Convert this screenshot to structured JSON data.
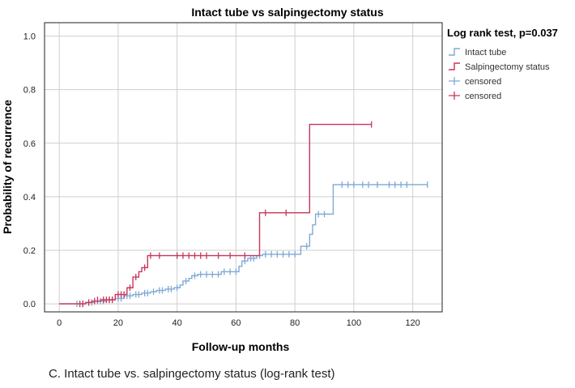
{
  "caption": "C. Intact tube vs. salpingectomy status (log-rank test)",
  "chart_data": {
    "type": "line",
    "step": true,
    "title": "Intact tube vs salpingectomy status",
    "xlabel": "Follow-up months",
    "ylabel": "Probability of recurrence",
    "xlim": [
      -5,
      130
    ],
    "ylim": [
      -0.03,
      1.05
    ],
    "xticks": [
      0,
      20,
      40,
      60,
      80,
      100,
      120
    ],
    "yticks": [
      0.0,
      0.2,
      0.4,
      0.6,
      0.8,
      1.0
    ],
    "xtick_labels": [
      "0",
      "20",
      "40",
      "60",
      "80",
      "100",
      "120"
    ],
    "ytick_labels": [
      "0.0",
      "0.2",
      "0.4",
      "0.6",
      "0.8",
      "1.0"
    ],
    "grid": true,
    "legend_title": "Log rank test, p=0.037",
    "legend": [
      {
        "label": "Intact tube",
        "kind": "step",
        "color": "#7FA9D6"
      },
      {
        "label": "Salpingectomy status",
        "kind": "step",
        "color": "#C8365A"
      },
      {
        "label": "censored",
        "kind": "censor",
        "color": "#7FA9D6"
      },
      {
        "label": "censored",
        "kind": "censor",
        "color": "#C8365A"
      }
    ],
    "series": [
      {
        "name": "Intact tube",
        "color": "#7FA9D6",
        "steps": [
          [
            0,
            0
          ],
          [
            9,
            0.005
          ],
          [
            12,
            0.01
          ],
          [
            16,
            0.015
          ],
          [
            19,
            0.02
          ],
          [
            22,
            0.03
          ],
          [
            25,
            0.035
          ],
          [
            28,
            0.04
          ],
          [
            31,
            0.045
          ],
          [
            33,
            0.05
          ],
          [
            36,
            0.055
          ],
          [
            39,
            0.06
          ],
          [
            41,
            0.07
          ],
          [
            42,
            0.085
          ],
          [
            44,
            0.095
          ],
          [
            45,
            0.105
          ],
          [
            47,
            0.11
          ],
          [
            55,
            0.12
          ],
          [
            61,
            0.14
          ],
          [
            62,
            0.16
          ],
          [
            64,
            0.17
          ],
          [
            67,
            0.18
          ],
          [
            69,
            0.185
          ],
          [
            82,
            0.215
          ],
          [
            85,
            0.26
          ],
          [
            86,
            0.295
          ],
          [
            87,
            0.335
          ],
          [
            93,
            0.445
          ],
          [
            125,
            0.445
          ]
        ],
        "censored": [
          [
            6,
            0
          ],
          [
            8,
            0
          ],
          [
            10,
            0.005
          ],
          [
            11,
            0.005
          ],
          [
            13,
            0.01
          ],
          [
            14,
            0.01
          ],
          [
            15,
            0.01
          ],
          [
            17,
            0.015
          ],
          [
            18,
            0.015
          ],
          [
            20,
            0.02
          ],
          [
            21,
            0.02
          ],
          [
            23,
            0.03
          ],
          [
            24,
            0.03
          ],
          [
            26,
            0.035
          ],
          [
            27,
            0.035
          ],
          [
            29,
            0.04
          ],
          [
            30,
            0.04
          ],
          [
            32,
            0.045
          ],
          [
            34,
            0.05
          ],
          [
            35,
            0.05
          ],
          [
            37,
            0.055
          ],
          [
            38,
            0.055
          ],
          [
            40,
            0.06
          ],
          [
            43,
            0.085
          ],
          [
            46,
            0.105
          ],
          [
            48,
            0.11
          ],
          [
            50,
            0.11
          ],
          [
            52,
            0.11
          ],
          [
            54,
            0.11
          ],
          [
            56,
            0.12
          ],
          [
            58,
            0.12
          ],
          [
            60,
            0.12
          ],
          [
            63,
            0.16
          ],
          [
            65,
            0.17
          ],
          [
            66,
            0.17
          ],
          [
            68,
            0.18
          ],
          [
            70,
            0.185
          ],
          [
            72,
            0.185
          ],
          [
            74,
            0.185
          ],
          [
            76,
            0.185
          ],
          [
            78,
            0.185
          ],
          [
            80,
            0.185
          ],
          [
            84,
            0.215
          ],
          [
            88,
            0.335
          ],
          [
            90,
            0.335
          ],
          [
            96,
            0.445
          ],
          [
            98,
            0.445
          ],
          [
            100,
            0.445
          ],
          [
            103,
            0.445
          ],
          [
            105,
            0.445
          ],
          [
            108,
            0.445
          ],
          [
            112,
            0.445
          ],
          [
            114,
            0.445
          ],
          [
            116,
            0.445
          ],
          [
            118,
            0.445
          ],
          [
            125,
            0.445
          ]
        ]
      },
      {
        "name": "Salpingectomy status",
        "color": "#C8365A",
        "steps": [
          [
            0,
            0
          ],
          [
            9,
            0.005
          ],
          [
            11,
            0.01
          ],
          [
            14,
            0.015
          ],
          [
            19,
            0.035
          ],
          [
            23,
            0.06
          ],
          [
            25,
            0.1
          ],
          [
            27,
            0.12
          ],
          [
            28,
            0.135
          ],
          [
            30,
            0.18
          ],
          [
            68,
            0.34
          ],
          [
            85,
            0.67
          ],
          [
            106,
            0.67
          ]
        ],
        "censored": [
          [
            7,
            0
          ],
          [
            8,
            0
          ],
          [
            10,
            0.005
          ],
          [
            12,
            0.01
          ],
          [
            13,
            0.015
          ],
          [
            15,
            0.015
          ],
          [
            16,
            0.015
          ],
          [
            17,
            0.015
          ],
          [
            18,
            0.015
          ],
          [
            20,
            0.035
          ],
          [
            21,
            0.035
          ],
          [
            22,
            0.035
          ],
          [
            24,
            0.06
          ],
          [
            26,
            0.1
          ],
          [
            29,
            0.135
          ],
          [
            31,
            0.18
          ],
          [
            34,
            0.18
          ],
          [
            40,
            0.18
          ],
          [
            42,
            0.18
          ],
          [
            44,
            0.18
          ],
          [
            46,
            0.18
          ],
          [
            48,
            0.18
          ],
          [
            50,
            0.18
          ],
          [
            54,
            0.18
          ],
          [
            58,
            0.18
          ],
          [
            63,
            0.18
          ],
          [
            70,
            0.34
          ],
          [
            77,
            0.34
          ],
          [
            106,
            0.67
          ]
        ]
      }
    ]
  }
}
